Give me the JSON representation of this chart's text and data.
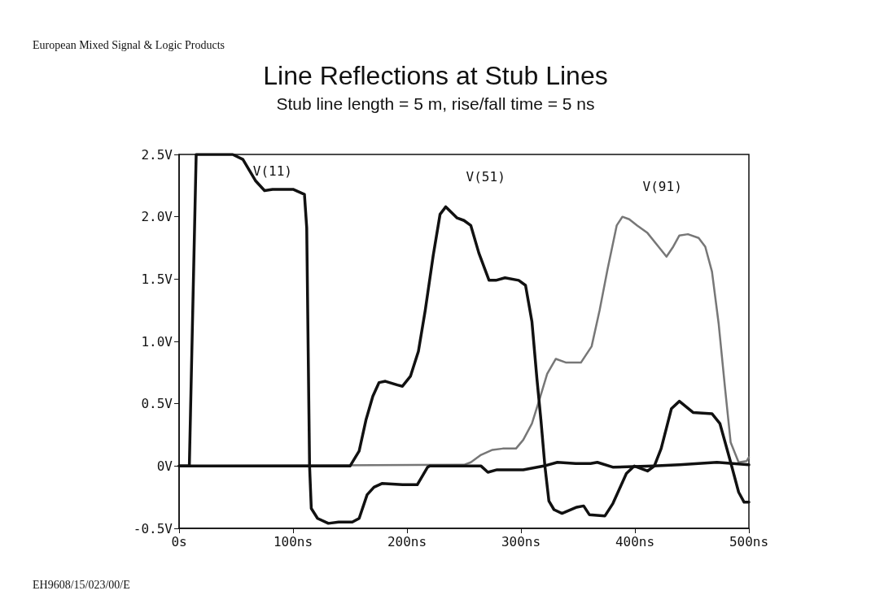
{
  "chart_data": {
    "type": "line",
    "title": "Line Reflections at Stub Lines",
    "subtitle": "Stub line length = 5 m, rise/fall time = 5 ns",
    "annotations": [
      "European Mixed Signal & Logic Products",
      "EH9608/15/023/00/E"
    ],
    "xlim": [
      0,
      500
    ],
    "xticks": [
      {
        "value": 0,
        "label": "0s"
      },
      {
        "value": 100,
        "label": "100ns"
      },
      {
        "value": 200,
        "label": "200ns"
      },
      {
        "value": 300,
        "label": "300ns"
      },
      {
        "value": 400,
        "label": "400ns"
      },
      {
        "value": 500,
        "label": "500ns"
      }
    ],
    "ylim": [
      -0.5,
      2.5
    ],
    "yticks": [
      {
        "value": -0.5,
        "label": "-0.5V"
      },
      {
        "value": 0,
        "label": "0V"
      },
      {
        "value": 0.5,
        "label": "0.5V"
      },
      {
        "value": 1,
        "label": "1.0V"
      },
      {
        "value": 1.5,
        "label": "1.5V"
      },
      {
        "value": 2,
        "label": "2.0V"
      },
      {
        "value": 2.5,
        "label": "2.5V"
      }
    ],
    "grid": false,
    "marker": "none",
    "line_style": "solid",
    "series": [
      {
        "name": "V(11)",
        "color": "#111111",
        "x": [
          0,
          9,
          15,
          47,
          56,
          67,
          75,
          82,
          100,
          110,
          112,
          114.5,
          116,
          121.5,
          131,
          140,
          152,
          158,
          165,
          171,
          178,
          196,
          209,
          218,
          220,
          265,
          271,
          279,
          302,
          320,
          332,
          348,
          361,
          367,
          381,
          416,
          439,
          472,
          500
        ],
        "values": [
          0,
          0,
          2.5,
          2.5,
          2.46,
          2.29,
          2.21,
          2.22,
          2.22,
          2.18,
          1.91,
          0,
          -0.34,
          -0.42,
          -0.46,
          -0.45,
          -0.45,
          -0.42,
          -0.23,
          -0.17,
          -0.14,
          -0.15,
          -0.15,
          -0.01,
          0,
          0,
          -0.05,
          -0.03,
          -0.03,
          0,
          0.03,
          0.02,
          0.02,
          0.03,
          -0.01,
          0,
          0.01,
          0.03,
          0.01
        ]
      },
      {
        "name": "V(51)",
        "color": "#111111",
        "x": [
          0,
          150,
          158,
          164,
          170,
          175.5,
          181,
          191.6,
          196,
          203,
          210,
          216,
          223,
          229,
          234,
          244,
          250,
          256,
          263,
          272,
          278,
          286,
          298,
          304,
          309.6,
          314,
          317.5,
          321,
          324.5,
          329,
          336,
          349,
          355,
          360,
          373.7,
          380.7,
          392.5,
          399.5,
          411,
          417,
          423,
          432,
          439,
          451,
          467.6,
          474.6,
          484,
          491,
          495.8,
          500
        ],
        "values": [
          0,
          0,
          0.12,
          0.37,
          0.56,
          0.67,
          0.68,
          0.65,
          0.64,
          0.72,
          0.92,
          1.25,
          1.69,
          2.02,
          2.08,
          1.99,
          1.97,
          1.93,
          1.71,
          1.49,
          1.49,
          1.51,
          1.49,
          1.45,
          1.16,
          0.7,
          0.37,
          0,
          -0.28,
          -0.35,
          -0.38,
          -0.33,
          -0.32,
          -0.39,
          -0.4,
          -0.3,
          -0.06,
          0,
          -0.04,
          0,
          0.14,
          0.46,
          0.52,
          0.43,
          0.42,
          0.34,
          0.03,
          -0.21,
          -0.29,
          -0.29
        ]
      },
      {
        "name": "V(91)",
        "color": "#777777",
        "x": [
          0,
          250,
          256,
          265,
          275,
          284,
          295.6,
          302,
          309.6,
          316.4,
          323,
          330.6,
          339.7,
          352.6,
          362,
          369,
          376,
          384,
          389,
          395,
          402,
          411,
          420.7,
          427.7,
          433.6,
          439,
          446.5,
          455.9,
          461.7,
          467.6,
          473.5,
          479,
          484,
          491,
          498,
          500
        ],
        "values": [
          0,
          0.01,
          0.03,
          0.09,
          0.13,
          0.14,
          0.14,
          0.21,
          0.34,
          0.54,
          0.74,
          0.86,
          0.83,
          0.83,
          0.96,
          1.25,
          1.58,
          1.93,
          2.0,
          1.98,
          1.93,
          1.87,
          1.76,
          1.68,
          1.76,
          1.85,
          1.86,
          1.83,
          1.76,
          1.56,
          1.14,
          0.63,
          0.19,
          0.03,
          0.04,
          0.07
        ]
      }
    ]
  }
}
